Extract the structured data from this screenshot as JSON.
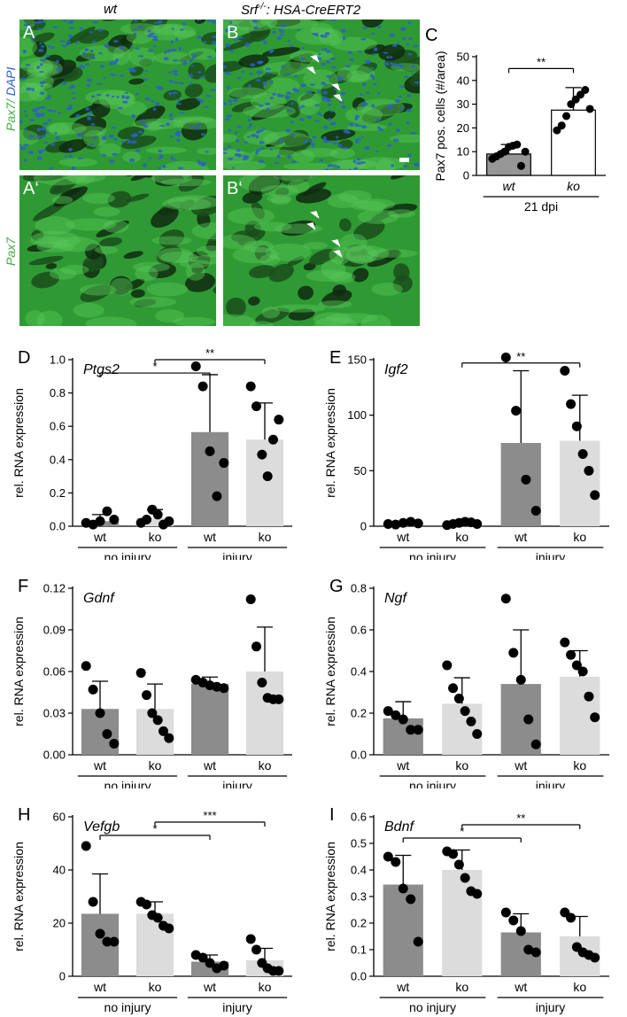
{
  "micrographs": {
    "header_wt": "wt",
    "header_ko_prefix": "Srf",
    "header_ko_sup": "-/-",
    "header_ko_suffix": ": HSA-CreERT2",
    "ylabel_top_pax7": "Pax7",
    "ylabel_top_sep": "/ ",
    "ylabel_top_dapi": "DAPI",
    "ylabel_bottom": "Pax7",
    "panel_A": "A",
    "panel_B": "B",
    "panel_A2": "A‘",
    "panel_B2": "B‘",
    "colors": {
      "green": "#3fae3f",
      "blue": "#2a5fcc",
      "arrow": "#ffffff"
    }
  },
  "chart_data": [
    {
      "id": "C",
      "panel_label": "C",
      "type": "bar",
      "categories": [
        "wt",
        "ko"
      ],
      "group_label": "21 dpi",
      "ylabel": "Pax7 pos. cells (#/area)",
      "ylim": [
        0,
        50
      ],
      "yticks": [
        0,
        10,
        20,
        30,
        40,
        50
      ],
      "means": [
        9,
        27.5
      ],
      "sd": [
        4,
        9.5
      ],
      "points": [
        [
          7,
          8,
          9,
          10,
          12,
          12.5,
          13,
          4,
          10
        ],
        [
          19,
          21,
          25,
          30,
          32,
          34,
          36,
          28
        ]
      ],
      "colors": [
        "#969696",
        "#ffffff"
      ],
      "significance": [
        {
          "from": 0,
          "to": 1,
          "label": "**",
          "y": 45
        }
      ]
    },
    {
      "id": "D",
      "panel_label": "D",
      "gene": "Ptgs2",
      "type": "bar",
      "categories": [
        "wt",
        "ko",
        "wt",
        "ko"
      ],
      "groups": [
        "no injury",
        "injury"
      ],
      "ylabel": "rel. RNA expression",
      "ylim": [
        0,
        1.0
      ],
      "yticks": [
        "0.0",
        "0.2",
        "0.4",
        "0.6",
        "0.8",
        "1.0"
      ],
      "means": [
        0.03,
        0.05,
        0.565,
        0.52
      ],
      "sd": [
        0.04,
        0.05,
        0.345,
        0.22
      ],
      "points": [
        [
          0.02,
          0.01,
          0.03,
          0.09,
          0.04
        ],
        [
          0.02,
          0.04,
          0.1,
          0.07,
          0.01,
          0.03
        ],
        [
          0.96,
          0.84,
          0.45,
          0.18,
          0.38
        ],
        [
          0.84,
          0.72,
          0.43,
          0.3,
          0.52,
          0.64
        ]
      ],
      "colors": [
        "#8c8c8c",
        "#dcdcdc",
        "#8c8c8c",
        "#dcdcdc"
      ],
      "significance": [
        {
          "from": 0,
          "to": 2,
          "label": "*",
          "y": 0.92
        },
        {
          "from": 1,
          "to": 3,
          "label": "**",
          "y": 1.0
        }
      ]
    },
    {
      "id": "E",
      "panel_label": "E",
      "gene": "Igf2",
      "type": "bar",
      "categories": [
        "wt",
        "ko",
        "wt",
        "ko"
      ],
      "groups": [
        "no injury",
        "injury"
      ],
      "ylabel": "rel. RNA expression",
      "ylim": [
        0,
        150
      ],
      "yticks": [
        "0",
        "50",
        "100",
        "150"
      ],
      "means": [
        2,
        2,
        75,
        77
      ],
      "sd": [
        1,
        1,
        65,
        41
      ],
      "points": [
        [
          2,
          1.5,
          3,
          4,
          2.5
        ],
        [
          1,
          2,
          3,
          4,
          3.5,
          2
        ],
        [
          152,
          104,
          42,
          14
        ],
        [
          140,
          110,
          90,
          65,
          50,
          28
        ]
      ],
      "colors": [
        "#8c8c8c",
        "#dcdcdc",
        "#8c8c8c",
        "#dcdcdc"
      ],
      "significance": [
        {
          "from": 1,
          "to": 3,
          "label": "**",
          "y": 147
        }
      ]
    },
    {
      "id": "F",
      "panel_label": "F",
      "gene": "Gdnf",
      "type": "bar",
      "categories": [
        "wt",
        "ko",
        "wt",
        "ko"
      ],
      "groups": [
        "no injury",
        "injury"
      ],
      "ylabel": "rel. RNA expression",
      "ylim": [
        0,
        0.12
      ],
      "yticks": [
        "0.00",
        "0.03",
        "0.06",
        "0.09",
        "0.12"
      ],
      "means": [
        0.033,
        0.033,
        0.051,
        0.06
      ],
      "sd": [
        0.02,
        0.018,
        0.005,
        0.032
      ],
      "points": [
        [
          0.064,
          0.047,
          0.03,
          0.015,
          0.008
        ],
        [
          0.059,
          0.043,
          0.03,
          0.025,
          0.017,
          0.012
        ],
        [
          0.054,
          0.052,
          0.05,
          0.049,
          0.048
        ],
        [
          0.112,
          0.078,
          0.052,
          0.041,
          0.04,
          0.04
        ]
      ],
      "colors": [
        "#8c8c8c",
        "#dcdcdc",
        "#8c8c8c",
        "#dcdcdc"
      ],
      "significance": []
    },
    {
      "id": "G",
      "panel_label": "G",
      "gene": "Ngf",
      "type": "bar",
      "categories": [
        "wt",
        "ko",
        "wt",
        "ko"
      ],
      "groups": [
        "no injury",
        "injury"
      ],
      "ylabel": "rel. RNA expression",
      "ylim": [
        0,
        0.8
      ],
      "yticks": [
        "0.0",
        "0.2",
        "0.4",
        "0.6",
        "0.8"
      ],
      "means": [
        0.175,
        0.245,
        0.34,
        0.375
      ],
      "sd": [
        0.08,
        0.125,
        0.26,
        0.125
      ],
      "points": [
        [
          0.21,
          0.19,
          0.17,
          0.12,
          0.12
        ],
        [
          0.43,
          0.32,
          0.27,
          0.21,
          0.16,
          0.1
        ],
        [
          0.75,
          0.49,
          0.36,
          0.17,
          0.05
        ],
        [
          0.54,
          0.48,
          0.43,
          0.4,
          0.28,
          0.18
        ]
      ],
      "colors": [
        "#8c8c8c",
        "#dcdcdc",
        "#8c8c8c",
        "#dcdcdc"
      ],
      "significance": []
    },
    {
      "id": "H",
      "panel_label": "H",
      "gene": "Vefgb",
      "type": "bar",
      "categories": [
        "wt",
        "ko",
        "wt",
        "ko"
      ],
      "groups": [
        "no injury",
        "injury"
      ],
      "ylabel": "rel. RNA expression",
      "ylim": [
        0,
        60
      ],
      "yticks": [
        "0",
        "20",
        "40",
        "60"
      ],
      "means": [
        23.5,
        23.5,
        5.5,
        6
      ],
      "sd": [
        15,
        4.5,
        2.5,
        4.5
      ],
      "points": [
        [
          49,
          28,
          16,
          13,
          13
        ],
        [
          28,
          27,
          23,
          22,
          19,
          18
        ],
        [
          8,
          7,
          5,
          3,
          4
        ],
        [
          14,
          10,
          5,
          3,
          2,
          2
        ]
      ],
      "colors": [
        "#8c8c8c",
        "#dcdcdc",
        "#8c8c8c",
        "#dcdcdc"
      ],
      "significance": [
        {
          "from": 0,
          "to": 2,
          "label": "*",
          "y": 53
        },
        {
          "from": 1,
          "to": 3,
          "label": "***",
          "y": 58
        }
      ]
    },
    {
      "id": "I",
      "panel_label": "I",
      "gene": "Bdnf",
      "type": "bar",
      "categories": [
        "wt",
        "ko",
        "wt",
        "ko"
      ],
      "groups": [
        "no injury",
        "injury"
      ],
      "ylabel": "rel. RNA expression",
      "ylim": [
        0,
        0.6
      ],
      "yticks": [
        "0.0",
        "0.1",
        "0.2",
        "0.3",
        "0.4",
        "0.5",
        "0.6"
      ],
      "means": [
        0.345,
        0.4,
        0.165,
        0.15
      ],
      "sd": [
        0.11,
        0.075,
        0.07,
        0.075
      ],
      "points": [
        [
          0.45,
          0.43,
          0.33,
          0.29,
          0.13
        ],
        [
          0.47,
          0.46,
          0.42,
          0.37,
          0.32,
          0.31
        ],
        [
          0.24,
          0.21,
          0.17,
          0.1,
          0.09
        ],
        [
          0.24,
          0.22,
          0.11,
          0.09,
          0.08,
          0.07
        ]
      ],
      "colors": [
        "#8c8c8c",
        "#dcdcdc",
        "#8c8c8c",
        "#dcdcdc"
      ],
      "significance": [
        {
          "from": 0,
          "to": 2,
          "label": "*",
          "y": 0.52
        },
        {
          "from": 1,
          "to": 3,
          "label": "**",
          "y": 0.57
        }
      ]
    }
  ]
}
